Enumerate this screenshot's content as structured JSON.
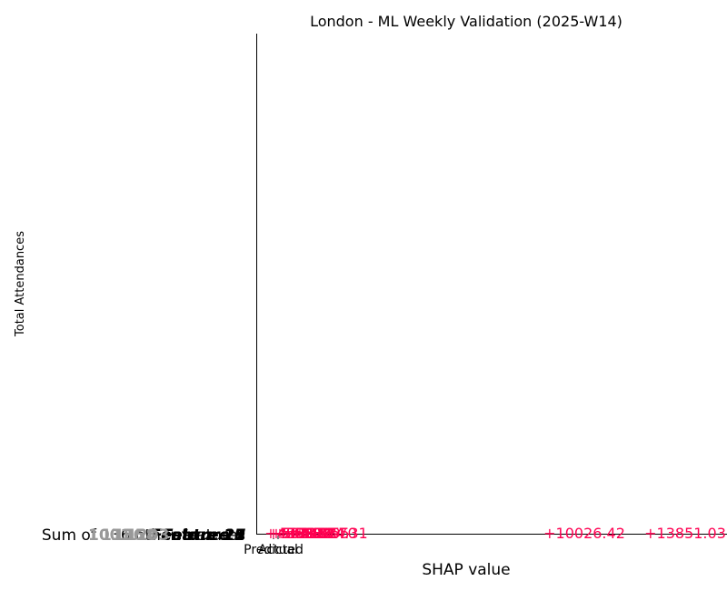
{
  "chart_data": {
    "type": "waterfall",
    "title": "London - ML Weekly Validation (2025-W14)",
    "xlabel": "SHAP value",
    "ylabel": "Total Attendances",
    "x_ticks": [
      "Predicted",
      "Actual"
    ],
    "feature_labels": [
      {
        "text": "Sum of 136 other features",
        "style": "normal",
        "color": "#000000"
      },
      {
        "text": "Feature 29",
        "style": "bold-italic",
        "color": "#000000"
      },
      {
        "text": "Feature 13",
        "style": "bold-italic",
        "color": "#000000"
      },
      {
        "text": "Feature 8",
        "style": "bold-italic",
        "color": "#000000"
      },
      {
        "text": "Feature 21",
        "style": "bold-italic",
        "color": "#000000"
      },
      {
        "text": "Feature 5",
        "style": "bold-italic",
        "color": "#000000"
      },
      {
        "text": "Feature 17",
        "style": "bold-italic",
        "color": "#000000"
      },
      {
        "text": "1001",
        "style": "normal",
        "color": "#999999"
      },
      {
        "text": "1136",
        "style": "normal",
        "color": "#999999"
      },
      {
        "text": "1158",
        "style": "normal",
        "color": "#999999"
      },
      {
        "text": "1203",
        "style": "normal",
        "color": "#999999"
      }
    ],
    "shap_values": [
      {
        "text": "+10026.42",
        "value": 10026.42
      },
      {
        "text": "+13851.03",
        "value": 13851.03
      },
      {
        "text": "+844.31",
        "value": 844.31
      },
      {
        "text": "+832.70",
        "value": 832.7
      },
      {
        "text": "+721.55",
        "value": 721.55
      },
      {
        "text": "+688.14",
        "value": 688.14
      },
      {
        "text": "+612.09",
        "value": 612.09
      },
      {
        "text": "+590.88",
        "value": 590.88
      },
      {
        "text": "+543.26",
        "value": 543.26
      },
      {
        "text": "+517.92",
        "value": 517.92
      },
      {
        "text": "+498.40",
        "value": 498.4
      }
    ],
    "positive_color": "#ff0051",
    "grid": false
  }
}
